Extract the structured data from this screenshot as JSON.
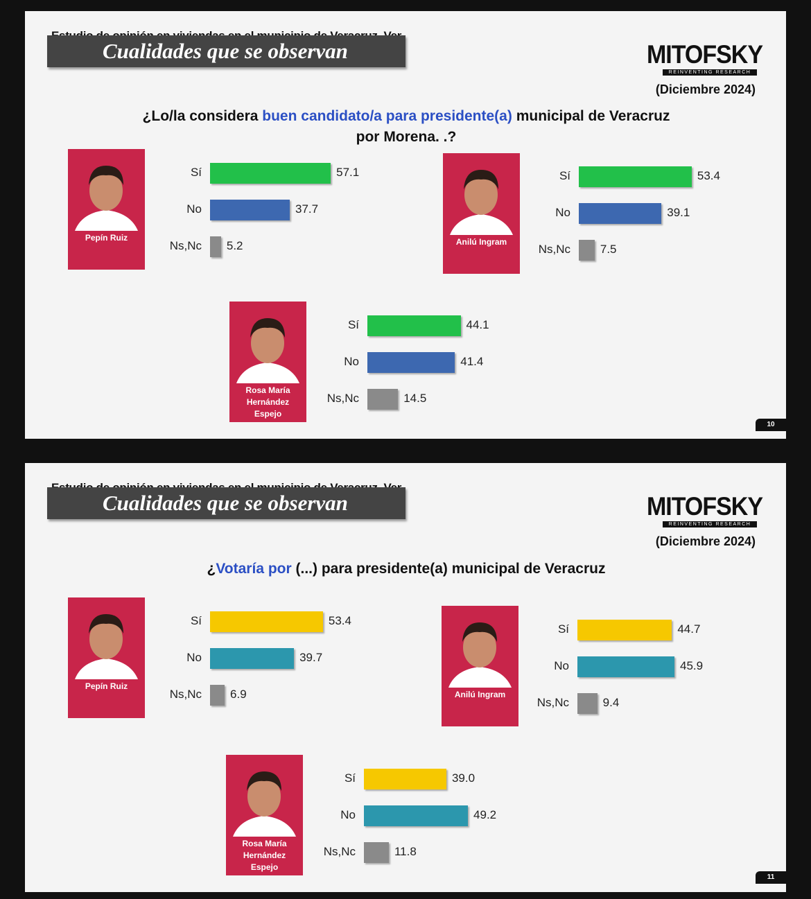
{
  "slides": [
    {
      "header": "Estudio de opinión en viviendas en el municipio de Veracruz, Ver.",
      "title": "Cualidades que se observan",
      "logo": "MITOFSKY",
      "logo_tagline": "REINVENTING RESEARCH",
      "date": "(Diciembre 2024)",
      "question": [
        {
          "text": "¿Lo/la considera ",
          "color": "#111111"
        },
        {
          "text": "buen candidato/a para presidente(a)",
          "color": "#2b4fc4"
        },
        {
          "text": " municipal de Veracruz por Morena. .?",
          "color": "#111111"
        }
      ],
      "page": "10"
    },
    {
      "header": "Estudio de opinión en viviendas en el municipio de Veracruz, Ver.",
      "title": "Cualidades que se observan",
      "logo": "MITOFSKY",
      "logo_tagline": "REINVENTING RESEARCH",
      "date": "(Diciembre 2024)",
      "question": [
        {
          "text": "¿",
          "color": "#111111"
        },
        {
          "text": "Votaría por",
          "color": "#2b4fc4"
        },
        {
          "text": " (...) para presidente(a) municipal de Veracruz",
          "color": "#111111"
        }
      ],
      "page": "11"
    }
  ],
  "chart_data": [
    {
      "type": "bar",
      "slide": 0,
      "title": "Pepín Ruiz",
      "categories": [
        "Sí",
        "No",
        "Ns,Nc"
      ],
      "values": [
        57.1,
        37.7,
        5.2
      ],
      "value_labels": [
        "57.1",
        "37.7",
        "5.2"
      ],
      "colors": [
        "#22c04a",
        "#3d68b0",
        "#8a8a8a"
      ]
    },
    {
      "type": "bar",
      "slide": 0,
      "title": "Anilú Ingram",
      "categories": [
        "Sí",
        "No",
        "Ns,Nc"
      ],
      "values": [
        53.4,
        39.1,
        7.5
      ],
      "value_labels": [
        "53.4",
        "39.1",
        "7.5"
      ],
      "colors": [
        "#22c04a",
        "#3d68b0",
        "#8a8a8a"
      ]
    },
    {
      "type": "bar",
      "slide": 0,
      "title": "Rosa María Hernández Espejo",
      "categories": [
        "Sí",
        "No",
        "Ns,Nc"
      ],
      "values": [
        44.1,
        41.4,
        14.5
      ],
      "value_labels": [
        "44.1",
        "41.4",
        "14.5"
      ],
      "colors": [
        "#22c04a",
        "#3d68b0",
        "#8a8a8a"
      ]
    },
    {
      "type": "bar",
      "slide": 1,
      "title": "Pepín Ruiz",
      "categories": [
        "Sí",
        "No",
        "Ns,Nc"
      ],
      "values": [
        53.4,
        39.7,
        6.9
      ],
      "value_labels": [
        "53.4",
        "39.7",
        "6.9"
      ],
      "colors": [
        "#f6c800",
        "#2c97ad",
        "#8a8a8a"
      ]
    },
    {
      "type": "bar",
      "slide": 1,
      "title": "Anilú Ingram",
      "categories": [
        "Sí",
        "No",
        "Ns,Nc"
      ],
      "values": [
        44.7,
        45.9,
        9.4
      ],
      "value_labels": [
        "44.7",
        "45.9",
        "9.4"
      ],
      "colors": [
        "#f6c800",
        "#2c97ad",
        "#8a8a8a"
      ]
    },
    {
      "type": "bar",
      "slide": 1,
      "title": "Rosa María Hernández Espejo",
      "categories": [
        "Sí",
        "No",
        "Ns,Nc"
      ],
      "values": [
        39.0,
        49.2,
        11.8
      ],
      "value_labels": [
        "39.0",
        "49.2",
        "11.8"
      ],
      "colors": [
        "#f6c800",
        "#2c97ad",
        "#8a8a8a"
      ]
    }
  ]
}
